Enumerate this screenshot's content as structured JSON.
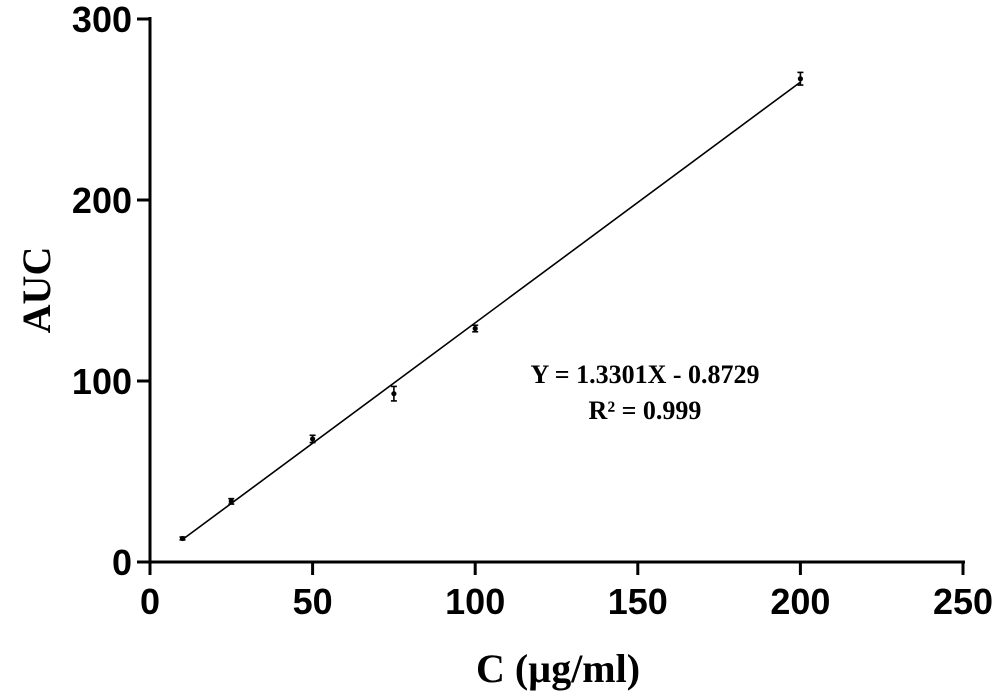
{
  "chart_data": {
    "type": "scatter",
    "title": "",
    "xlabel": "C (µg/ml)",
    "ylabel": "AUC",
    "xlim": [
      0,
      250
    ],
    "ylim": [
      0,
      300
    ],
    "x_ticks": [
      0,
      50,
      100,
      150,
      200,
      250
    ],
    "y_ticks": [
      0,
      100,
      200,
      300
    ],
    "grid": false,
    "series": [
      {
        "x": [
          10,
          25,
          50,
          75,
          100,
          200
        ],
        "y": [
          13,
          33.5,
          68,
          93,
          129,
          267
        ],
        "error": [
          0.8,
          1.5,
          2,
          4,
          1.8,
          3.5
        ]
      }
    ],
    "fit_line": {
      "slope": 1.3301,
      "intercept": -0.8729,
      "x_range": [
        10,
        200
      ]
    },
    "annotations": {
      "equation": "Y = 1.3301X - 0.8729",
      "r_squared": "R² = 0.999"
    }
  }
}
